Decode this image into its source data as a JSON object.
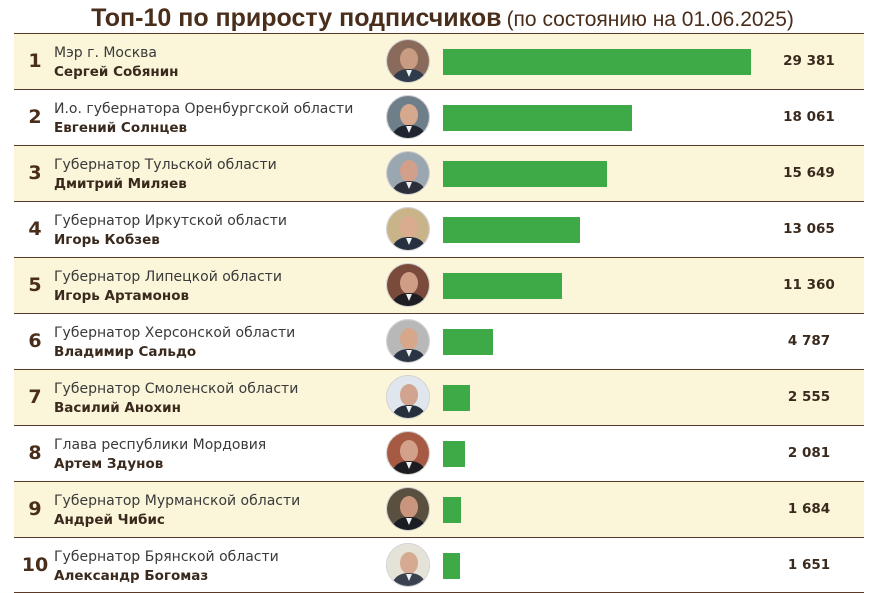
{
  "title": {
    "main": "Топ-10 по приросту подписчиков",
    "sub": "(по состоянию на 01.06.2025)"
  },
  "colors": {
    "bar": "#3eaa47",
    "row_alt": "#fbf5d9",
    "divider": "#5a3a26",
    "title": "#4a2e1c"
  },
  "chart_data": {
    "type": "bar",
    "orientation": "horizontal",
    "title": "Топ-10 по приросту подписчиков",
    "subtitle": "(по состоянию на 01.06.2025)",
    "xlim": [
      0,
      29381
    ],
    "rows": [
      {
        "rank": "1",
        "position": "Мэр г. Москва",
        "name": "Сергей Собянин",
        "value": 29381,
        "label": "29 381"
      },
      {
        "rank": "2",
        "position": "И.о. губернатора Оренбургской области",
        "name": "Евгений Солнцев",
        "value": 18061,
        "label": "18 061"
      },
      {
        "rank": "3",
        "position": "Губернатор Тульской области",
        "name": "Дмитрий Миляев",
        "value": 15649,
        "label": "15 649"
      },
      {
        "rank": "4",
        "position": "Губернатор Иркутской области",
        "name": "Игорь Кобзев",
        "value": 13065,
        "label": "13 065"
      },
      {
        "rank": "5",
        "position": "Губернатор Липецкой области",
        "name": "Игорь Артамонов",
        "value": 11360,
        "label": "11 360"
      },
      {
        "rank": "6",
        "position": "Губернатор Херсонской области",
        "name": "Владимир Сальдо",
        "value": 4787,
        "label": "4 787"
      },
      {
        "rank": "7",
        "position": "Губернатор Смоленской области",
        "name": "Василий Анохин",
        "value": 2555,
        "label": "2 555"
      },
      {
        "rank": "8",
        "position": "Глава республики Мордовия",
        "name": "Артем Здунов",
        "value": 2081,
        "label": "2 081"
      },
      {
        "rank": "9",
        "position": "Губернатор Мурманской области",
        "name": "Андрей Чибис",
        "value": 1684,
        "label": "1 684"
      },
      {
        "rank": "10",
        "position": "Губернатор Брянской области",
        "name": "Александр Богомаз",
        "value": 1651,
        "label": "1 651"
      }
    ]
  }
}
